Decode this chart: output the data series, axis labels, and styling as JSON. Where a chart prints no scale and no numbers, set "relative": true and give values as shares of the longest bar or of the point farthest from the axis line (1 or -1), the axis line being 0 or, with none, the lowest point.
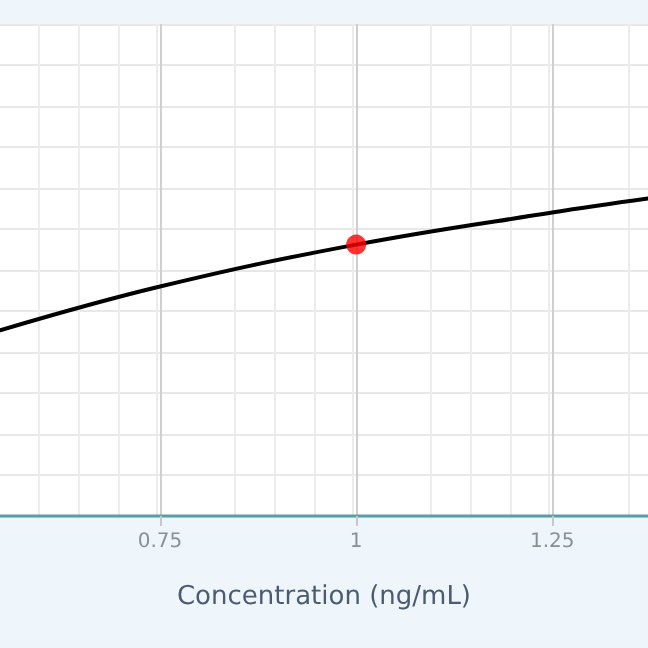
{
  "chart_data": {
    "type": "line",
    "xlabel": "Concentration (ng/mL)",
    "relative": true,
    "xlim": [
      0.546,
      1.372
    ],
    "xticks": [
      0.75,
      1,
      1.25
    ],
    "grid": true,
    "line_style": "solid",
    "marker": "none",
    "series": [
      {
        "color": "#000000",
        "x": [
          0.546,
          0.75,
          1.0,
          1.25,
          1.372
        ],
        "values": [
          0.585,
          0.723,
          0.855,
          0.956,
          1
        ]
      },
      {
        "type": "scatter",
        "color": "#ff0000",
        "marker": "circle",
        "x": [
          1.0
        ],
        "values": [
          0.855
        ]
      }
    ]
  }
}
